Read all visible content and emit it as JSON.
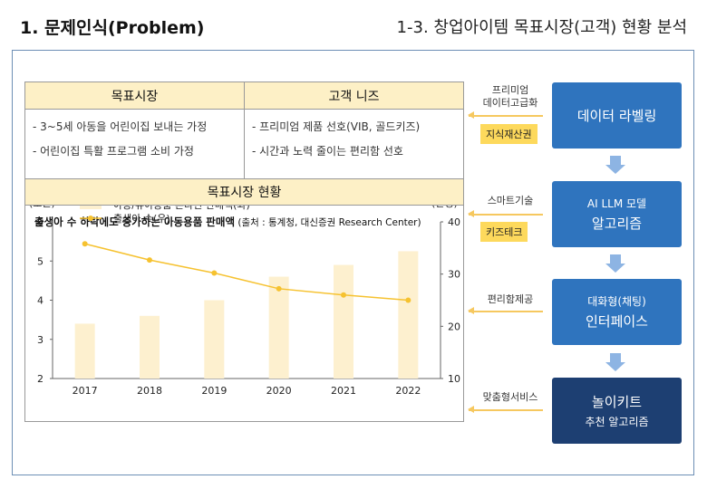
{
  "header": {
    "left_title": "1. 문제인식(Problem)",
    "right_title": "1-3. 창업아이템 목표시장(고객) 현황 분석"
  },
  "market": {
    "col1_header": "목표시장",
    "col2_header": "고객 니즈",
    "col1_items": [
      "- 3~5세 아동을 어린이집 보내는 가정",
      "- 어린이집 특활 프로그램 소비 가정"
    ],
    "col2_items": [
      "- 프리미엄 제품 선호(VIB, 골드키즈)",
      "- 시간과 노력 줄이는 편리함 선호"
    ],
    "status_header": "목표시장 현황"
  },
  "chart_title": {
    "main": "출생아 수 하락에도 증가하는 아동용품 판매액",
    "source": " (출처 : 통계청, 대신증권 Research Center)"
  },
  "chart_data": {
    "type": "bar+line",
    "categories": [
      "2017",
      "2018",
      "2019",
      "2020",
      "2021",
      "2022"
    ],
    "series": [
      {
        "name": "아동/유아용품 온라인 판매액(좌)",
        "type": "bar",
        "axis": "left",
        "color": "#fdf0cf",
        "values": [
          3.4,
          3.6,
          4.0,
          4.6,
          4.9,
          5.25
        ]
      },
      {
        "name": "출생아 수(우)",
        "type": "line",
        "axis": "right",
        "color": "#f6c230",
        "values": [
          35.8,
          32.7,
          30.2,
          27.2,
          26.0,
          25.0
        ]
      }
    ],
    "left_axis": {
      "label": "(조원)",
      "min": 2,
      "max": 6,
      "ticks": [
        "2",
        "3",
        "4",
        "5",
        "6"
      ]
    },
    "right_axis": {
      "label": "(만명)",
      "min": 10,
      "max": 40,
      "ticks": [
        "10",
        "20",
        "30",
        "40"
      ]
    },
    "legend_position": "top-left"
  },
  "flow": {
    "steps": [
      {
        "line1": "데이터 라벨링",
        "line2": ""
      },
      {
        "line1": "AI LLM 모델",
        "line2": "알고리즘"
      },
      {
        "line1": "대화형(채팅)",
        "line2": "인터페이스"
      },
      {
        "line1": "놀이키트",
        "line2": "추천 알고리즘"
      }
    ],
    "labels": [
      "프리미엄\n데이터고급화",
      "스마트기술",
      "편리함제공",
      "맞춤형서비스"
    ],
    "tags": [
      "지식재산권",
      "키즈테크"
    ]
  },
  "colors": {
    "flow_blue": "#2f74be",
    "flow_navy": "#1d3f72",
    "accent_yellow": "#f6c85f",
    "header_fill": "#fdf0c6"
  }
}
